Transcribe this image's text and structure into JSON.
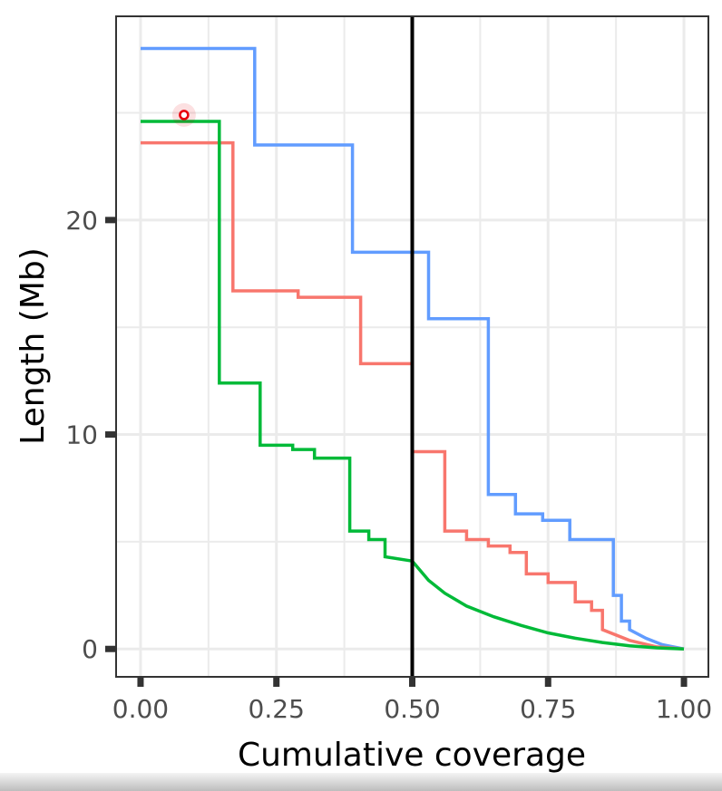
{
  "chart_data": {
    "type": "line",
    "title": "",
    "xlabel": "Cumulative coverage",
    "ylabel": "Length (Mb)",
    "xlim": [
      -0.045,
      1.045
    ],
    "ylim": [
      -1.3,
      29.5
    ],
    "x_ticks": [
      0,
      0.25,
      0.5,
      0.75,
      1
    ],
    "x_tick_labels": [
      "0.00",
      "0.25",
      "0.50",
      "0.75",
      "1.00"
    ],
    "y_ticks": [
      0,
      10,
      20
    ],
    "y_tick_labels": [
      "0",
      "10",
      "20"
    ],
    "grid": true,
    "legend": "none",
    "vline": {
      "x": 0.5,
      "color": "#000000"
    },
    "marker": {
      "x": 0.08,
      "y": 24.9,
      "color": "#e8000b"
    },
    "series": [
      {
        "color": "#619cff",
        "x": [
          0,
          0.21,
          0.21,
          0.39,
          0.39,
          0.53,
          0.53,
          0.64,
          0.64,
          0.69,
          0.69,
          0.74,
          0.74,
          0.79,
          0.79,
          0.87,
          0.87,
          0.885,
          0.885,
          0.9,
          0.9,
          0.93,
          0.96,
          1.0
        ],
        "y": [
          28.0,
          28.0,
          23.5,
          23.5,
          18.5,
          18.5,
          15.4,
          15.4,
          7.2,
          7.2,
          6.3,
          6.3,
          6.0,
          6.0,
          5.1,
          5.1,
          2.5,
          2.5,
          1.3,
          1.3,
          0.9,
          0.5,
          0.2,
          0.0
        ]
      },
      {
        "color": "#f8766d",
        "x": [
          0,
          0.17,
          0.17,
          0.29,
          0.29,
          0.405,
          0.405,
          0.5,
          0.5,
          0.56,
          0.56,
          0.6,
          0.6,
          0.64,
          0.64,
          0.68,
          0.68,
          0.71,
          0.71,
          0.75,
          0.75,
          0.8,
          0.8,
          0.83,
          0.83,
          0.85,
          0.85,
          0.9,
          0.95,
          1.0
        ],
        "y": [
          23.6,
          23.6,
          16.7,
          16.7,
          16.4,
          16.4,
          13.3,
          13.3,
          9.2,
          9.2,
          5.5,
          5.5,
          5.1,
          5.1,
          4.8,
          4.8,
          4.5,
          4.5,
          3.5,
          3.5,
          3.1,
          3.1,
          2.2,
          2.2,
          1.8,
          1.8,
          0.9,
          0.4,
          0.1,
          0.0
        ]
      },
      {
        "color": "#00ba38",
        "x": [
          0,
          0.145,
          0.145,
          0.22,
          0.22,
          0.28,
          0.28,
          0.32,
          0.32,
          0.385,
          0.385,
          0.42,
          0.42,
          0.45,
          0.45,
          0.5,
          0.53,
          0.56,
          0.6,
          0.65,
          0.7,
          0.75,
          0.8,
          0.85,
          0.9,
          0.95,
          1.0
        ],
        "y": [
          24.6,
          24.6,
          12.4,
          12.4,
          9.5,
          9.5,
          9.3,
          9.3,
          8.9,
          8.9,
          5.5,
          5.5,
          5.1,
          5.1,
          4.3,
          4.1,
          3.2,
          2.6,
          2.0,
          1.5,
          1.1,
          0.75,
          0.5,
          0.3,
          0.15,
          0.05,
          0.0
        ]
      }
    ]
  }
}
